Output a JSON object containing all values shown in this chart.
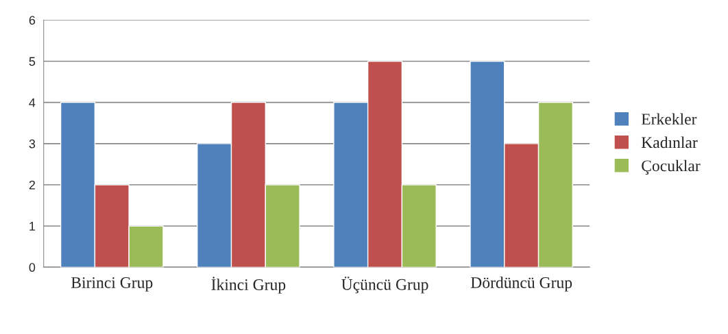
{
  "chart_data": {
    "type": "bar",
    "categories": [
      "Birinci Grup",
      "İkinci Grup",
      "Üçüncü Grup",
      "Dördüncü Grup"
    ],
    "series": [
      {
        "name": "Erkekler",
        "color": "#4f81bd",
        "values": [
          4,
          3,
          4,
          5
        ]
      },
      {
        "name": "Kadınlar",
        "color": "#c0504d",
        "values": [
          2,
          4,
          5,
          3
        ]
      },
      {
        "name": "Çocuklar",
        "color": "#9bbb59",
        "values": [
          1,
          2,
          2,
          4
        ]
      }
    ],
    "ylim": [
      0,
      6
    ],
    "yticks": [
      0,
      1,
      2,
      3,
      4,
      5,
      6
    ],
    "grid": "y",
    "legend": "right"
  }
}
